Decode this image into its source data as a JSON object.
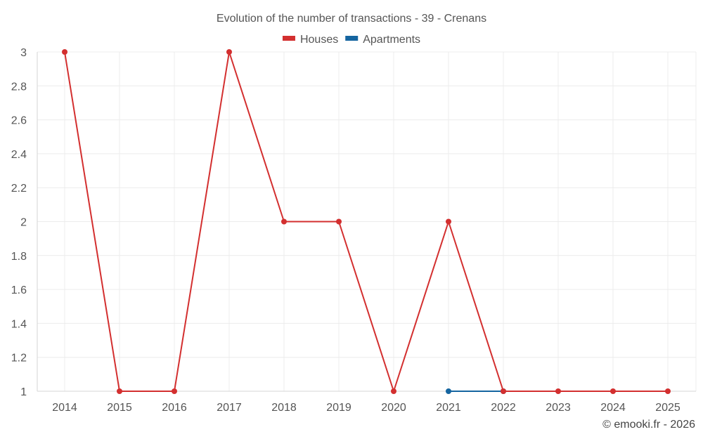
{
  "chart_data": {
    "type": "line",
    "title": "Evolution of the number of transactions - 39 - Crenans",
    "categories": [
      "2014",
      "2015",
      "2016",
      "2017",
      "2018",
      "2019",
      "2020",
      "2021",
      "2022",
      "2023",
      "2024",
      "2025"
    ],
    "series": [
      {
        "name": "Houses",
        "color": "#d32f2f",
        "values": [
          3,
          1,
          1,
          3,
          2,
          2,
          1,
          2,
          1,
          1,
          1,
          1
        ]
      },
      {
        "name": "Apartments",
        "color": "#1565a0",
        "values": [
          null,
          null,
          null,
          null,
          null,
          null,
          null,
          1,
          1,
          null,
          null,
          null
        ]
      }
    ],
    "ylim": [
      1,
      3
    ],
    "yticks": [
      "1",
      "1.2",
      "1.4",
      "1.6",
      "1.8",
      "2",
      "2.2",
      "2.4",
      "2.6",
      "2.8",
      "3"
    ],
    "grid": true,
    "legend_position": "top-center"
  },
  "credit": "© emooki.fr - 2026"
}
